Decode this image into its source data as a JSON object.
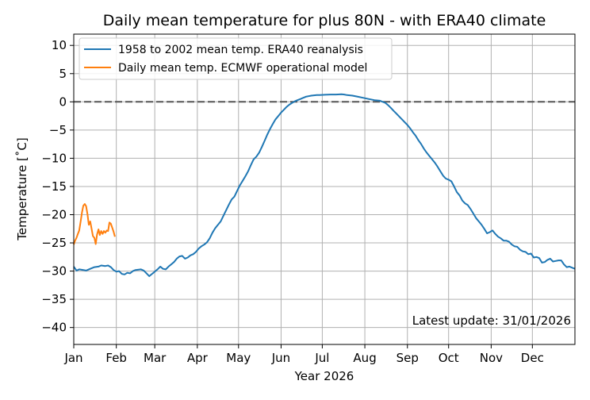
{
  "chart_data": {
    "type": "line",
    "title": "Daily mean temperature for plus 80N - with ERA40 climate",
    "xlabel": "Year 2026",
    "ylabel": "Temperature [$^\\circ$C]",
    "ylabel_display": "Temperature [˚C]",
    "x_unit": "day of year",
    "xlim": [
      1,
      366
    ],
    "ylim": [
      -43,
      12
    ],
    "x_ticks": [
      {
        "day": 1,
        "label": "Jan"
      },
      {
        "day": 32,
        "label": "Feb"
      },
      {
        "day": 60,
        "label": "Mar"
      },
      {
        "day": 91,
        "label": "Apr"
      },
      {
        "day": 121,
        "label": "May"
      },
      {
        "day": 152,
        "label": "Jun"
      },
      {
        "day": 182,
        "label": "Jul"
      },
      {
        "day": 213,
        "label": "Aug"
      },
      {
        "day": 244,
        "label": "Sep"
      },
      {
        "day": 274,
        "label": "Oct"
      },
      {
        "day": 305,
        "label": "Nov"
      },
      {
        "day": 335,
        "label": "Dec"
      }
    ],
    "y_ticks": [
      10,
      5,
      0,
      -5,
      -10,
      -15,
      -20,
      -25,
      -30,
      -35,
      -40
    ],
    "grid": true,
    "legend_position": "top-left",
    "reference_line": {
      "y": 0,
      "style": "dashed",
      "color": "#555555"
    },
    "annotation": "Latest update: 31/01/2026",
    "series": [
      {
        "name": "1958 to 2002 mean temp. ERA40 reanalysis",
        "color": "#1f77b4",
        "points": [
          [
            1,
            -29.2
          ],
          [
            3,
            -29.9
          ],
          [
            5,
            -29.7
          ],
          [
            8,
            -29.8
          ],
          [
            10,
            -29.9
          ],
          [
            13,
            -29.6
          ],
          [
            16,
            -29.3
          ],
          [
            19,
            -29.2
          ],
          [
            21,
            -29.0
          ],
          [
            24,
            -29.1
          ],
          [
            26,
            -29.0
          ],
          [
            28,
            -29.3
          ],
          [
            30,
            -29.8
          ],
          [
            32,
            -30.1
          ],
          [
            34,
            -30.0
          ],
          [
            36,
            -30.5
          ],
          [
            38,
            -30.6
          ],
          [
            40,
            -30.3
          ],
          [
            42,
            -30.4
          ],
          [
            44,
            -30.0
          ],
          [
            46,
            -29.8
          ],
          [
            50,
            -29.7
          ],
          [
            52,
            -29.9
          ],
          [
            54,
            -30.4
          ],
          [
            56,
            -30.9
          ],
          [
            58,
            -30.5
          ],
          [
            60,
            -30.1
          ],
          [
            62,
            -29.7
          ],
          [
            64,
            -29.2
          ],
          [
            66,
            -29.6
          ],
          [
            68,
            -29.7
          ],
          [
            70,
            -29.2
          ],
          [
            72,
            -28.8
          ],
          [
            74,
            -28.4
          ],
          [
            76,
            -27.8
          ],
          [
            78,
            -27.4
          ],
          [
            80,
            -27.3
          ],
          [
            82,
            -27.8
          ],
          [
            84,
            -27.6
          ],
          [
            86,
            -27.2
          ],
          [
            88,
            -27.0
          ],
          [
            90,
            -26.6
          ],
          [
            92,
            -26.0
          ],
          [
            94,
            -25.6
          ],
          [
            96,
            -25.3
          ],
          [
            98,
            -24.9
          ],
          [
            100,
            -24.2
          ],
          [
            102,
            -23.2
          ],
          [
            104,
            -22.4
          ],
          [
            106,
            -21.8
          ],
          [
            108,
            -21.2
          ],
          [
            110,
            -20.2
          ],
          [
            112,
            -19.2
          ],
          [
            114,
            -18.2
          ],
          [
            116,
            -17.3
          ],
          [
            118,
            -16.8
          ],
          [
            120,
            -15.8
          ],
          [
            122,
            -14.8
          ],
          [
            124,
            -14.0
          ],
          [
            126,
            -13.2
          ],
          [
            128,
            -12.3
          ],
          [
            130,
            -11.2
          ],
          [
            132,
            -10.2
          ],
          [
            134,
            -9.7
          ],
          [
            136,
            -9.0
          ],
          [
            138,
            -8.0
          ],
          [
            140,
            -6.9
          ],
          [
            142,
            -5.8
          ],
          [
            144,
            -4.8
          ],
          [
            146,
            -3.9
          ],
          [
            148,
            -3.1
          ],
          [
            150,
            -2.5
          ],
          [
            152,
            -1.9
          ],
          [
            154,
            -1.4
          ],
          [
            156,
            -0.9
          ],
          [
            158,
            -0.5
          ],
          [
            160,
            -0.2
          ],
          [
            162,
            0.1
          ],
          [
            164,
            0.3
          ],
          [
            166,
            0.5
          ],
          [
            168,
            0.7
          ],
          [
            170,
            0.9
          ],
          [
            172,
            1.0
          ],
          [
            174,
            1.1
          ],
          [
            176,
            1.15
          ],
          [
            178,
            1.2
          ],
          [
            180,
            1.2
          ],
          [
            184,
            1.25
          ],
          [
            188,
            1.3
          ],
          [
            192,
            1.3
          ],
          [
            196,
            1.35
          ],
          [
            198,
            1.3
          ],
          [
            200,
            1.2
          ],
          [
            204,
            1.1
          ],
          [
            208,
            0.9
          ],
          [
            212,
            0.7
          ],
          [
            216,
            0.5
          ],
          [
            220,
            0.3
          ],
          [
            224,
            0.2
          ],
          [
            226,
            0.0
          ],
          [
            228,
            -0.2
          ],
          [
            230,
            -0.6
          ],
          [
            232,
            -1.1
          ],
          [
            234,
            -1.6
          ],
          [
            236,
            -2.1
          ],
          [
            238,
            -2.6
          ],
          [
            240,
            -3.1
          ],
          [
            242,
            -3.6
          ],
          [
            244,
            -4.1
          ],
          [
            246,
            -4.7
          ],
          [
            248,
            -5.4
          ],
          [
            250,
            -6.0
          ],
          [
            252,
            -6.8
          ],
          [
            254,
            -7.5
          ],
          [
            256,
            -8.3
          ],
          [
            258,
            -9.0
          ],
          [
            260,
            -9.6
          ],
          [
            262,
            -10.2
          ],
          [
            264,
            -10.8
          ],
          [
            266,
            -11.5
          ],
          [
            268,
            -12.3
          ],
          [
            270,
            -13.1
          ],
          [
            272,
            -13.6
          ],
          [
            274,
            -13.8
          ],
          [
            276,
            -14.1
          ],
          [
            278,
            -15.0
          ],
          [
            280,
            -16.0
          ],
          [
            282,
            -16.6
          ],
          [
            284,
            -17.5
          ],
          [
            286,
            -18.0
          ],
          [
            288,
            -18.3
          ],
          [
            290,
            -19.0
          ],
          [
            292,
            -19.8
          ],
          [
            294,
            -20.6
          ],
          [
            296,
            -21.2
          ],
          [
            298,
            -21.8
          ],
          [
            300,
            -22.5
          ],
          [
            302,
            -23.3
          ],
          [
            304,
            -23.1
          ],
          [
            306,
            -22.8
          ],
          [
            308,
            -23.4
          ],
          [
            310,
            -23.9
          ],
          [
            312,
            -24.2
          ],
          [
            314,
            -24.6
          ],
          [
            316,
            -24.6
          ],
          [
            318,
            -24.8
          ],
          [
            320,
            -25.3
          ],
          [
            322,
            -25.6
          ],
          [
            324,
            -25.7
          ],
          [
            326,
            -26.2
          ],
          [
            328,
            -26.5
          ],
          [
            330,
            -26.6
          ],
          [
            332,
            -27.0
          ],
          [
            334,
            -26.9
          ],
          [
            336,
            -27.6
          ],
          [
            338,
            -27.5
          ],
          [
            340,
            -27.7
          ],
          [
            342,
            -28.5
          ],
          [
            344,
            -28.4
          ],
          [
            346,
            -28.0
          ],
          [
            348,
            -27.8
          ],
          [
            350,
            -28.3
          ],
          [
            352,
            -28.2
          ],
          [
            354,
            -28.1
          ],
          [
            356,
            -28.1
          ],
          [
            358,
            -28.8
          ],
          [
            360,
            -29.3
          ],
          [
            362,
            -29.2
          ],
          [
            364,
            -29.4
          ],
          [
            366,
            -29.6
          ]
        ]
      },
      {
        "name": "Daily mean temp. ECMWF operational model",
        "color": "#ff7f0e",
        "points": [
          [
            1,
            -25.3
          ],
          [
            2,
            -24.6
          ],
          [
            3,
            -24.1
          ],
          [
            4,
            -23.4
          ],
          [
            5,
            -22.8
          ],
          [
            6,
            -21.2
          ],
          [
            7,
            -19.6
          ],
          [
            8,
            -18.4
          ],
          [
            9,
            -18.1
          ],
          [
            10,
            -18.5
          ],
          [
            11,
            -19.9
          ],
          [
            12,
            -21.8
          ],
          [
            13,
            -21.2
          ],
          [
            14,
            -22.5
          ],
          [
            15,
            -23.8
          ],
          [
            16,
            -24.1
          ],
          [
            17,
            -25.2
          ],
          [
            18,
            -23.5
          ],
          [
            19,
            -22.6
          ],
          [
            20,
            -23.6
          ],
          [
            21,
            -22.9
          ],
          [
            22,
            -23.4
          ],
          [
            23,
            -22.9
          ],
          [
            24,
            -23.2
          ],
          [
            25,
            -22.8
          ],
          [
            26,
            -22.9
          ],
          [
            27,
            -21.4
          ],
          [
            28,
            -21.6
          ],
          [
            29,
            -22.3
          ],
          [
            30,
            -23.0
          ],
          [
            31,
            -23.9
          ]
        ]
      }
    ]
  }
}
